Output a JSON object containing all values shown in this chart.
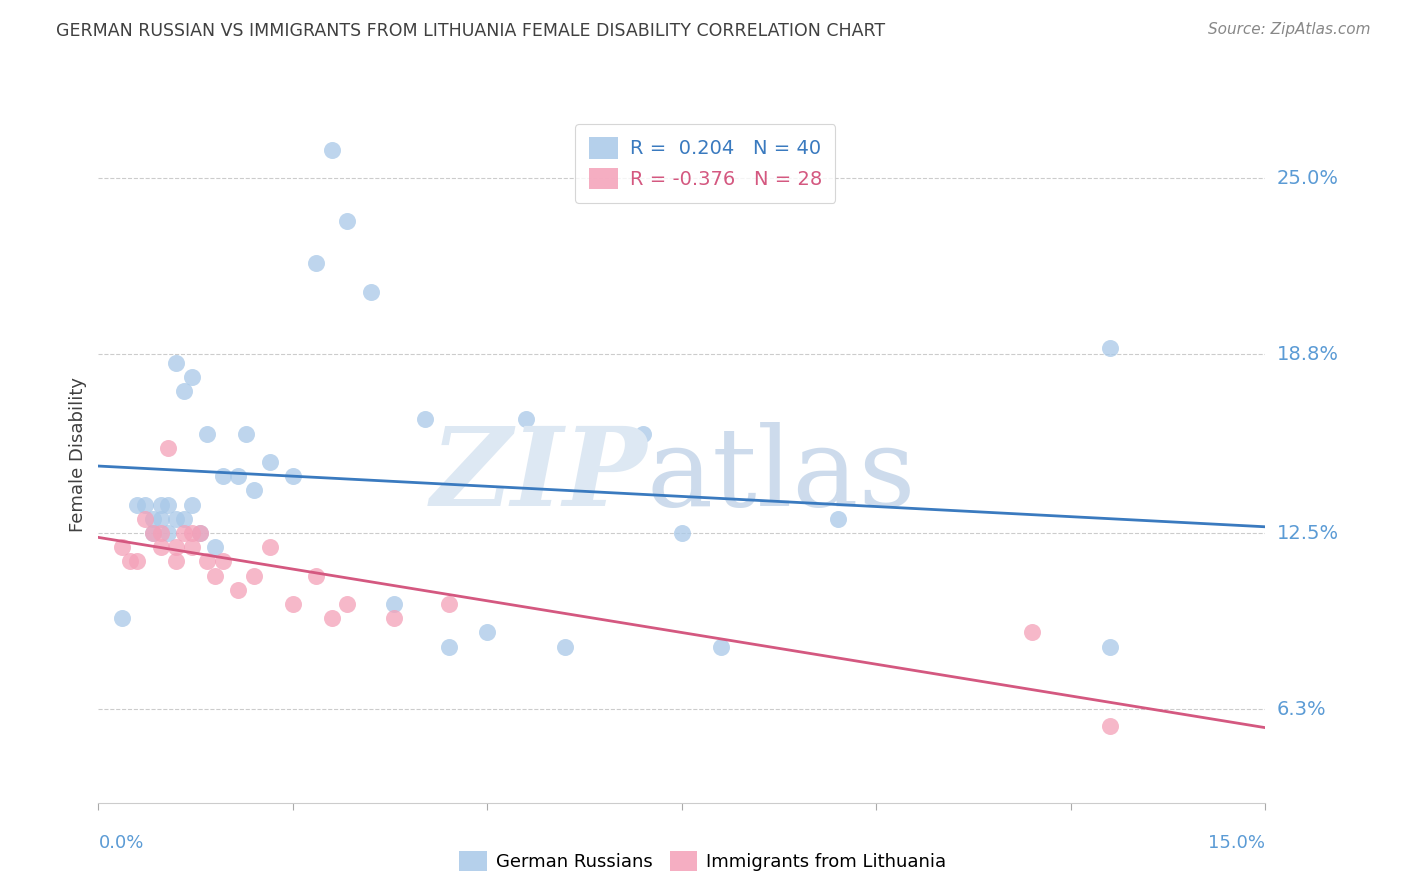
{
  "title": "GERMAN RUSSIAN VS IMMIGRANTS FROM LITHUANIA FEMALE DISABILITY CORRELATION CHART",
  "source": "Source: ZipAtlas.com",
  "ylabel": "Female Disability",
  "ytick_labels": [
    "6.3%",
    "12.5%",
    "18.8%",
    "25.0%"
  ],
  "ytick_values": [
    0.063,
    0.125,
    0.188,
    0.25
  ],
  "xlim": [
    0.0,
    0.15
  ],
  "ylim": [
    0.03,
    0.275
  ],
  "legend1_R": "0.204",
  "legend1_N": "40",
  "legend2_R": "-0.376",
  "legend2_N": "28",
  "blue_color": "#a8c8e8",
  "pink_color": "#f4a0b8",
  "blue_line_color": "#3a7abf",
  "pink_line_color": "#d45880",
  "axis_label_color": "#5b9bd5",
  "title_color": "#404040",
  "grid_color": "#cccccc",
  "german_russian_x": [
    0.003,
    0.005,
    0.006,
    0.007,
    0.007,
    0.008,
    0.008,
    0.009,
    0.009,
    0.01,
    0.01,
    0.011,
    0.011,
    0.012,
    0.012,
    0.013,
    0.014,
    0.015,
    0.016,
    0.018,
    0.019,
    0.02,
    0.022,
    0.025,
    0.028,
    0.03,
    0.032,
    0.035,
    0.038,
    0.042,
    0.045,
    0.05,
    0.055,
    0.06,
    0.07,
    0.075,
    0.08,
    0.095,
    0.13,
    0.13
  ],
  "german_russian_y": [
    0.095,
    0.135,
    0.135,
    0.125,
    0.13,
    0.13,
    0.135,
    0.125,
    0.135,
    0.13,
    0.185,
    0.13,
    0.175,
    0.135,
    0.18,
    0.125,
    0.16,
    0.12,
    0.145,
    0.145,
    0.16,
    0.14,
    0.15,
    0.145,
    0.22,
    0.26,
    0.235,
    0.21,
    0.1,
    0.165,
    0.085,
    0.09,
    0.165,
    0.085,
    0.16,
    0.125,
    0.085,
    0.13,
    0.085,
    0.19
  ],
  "lithuania_x": [
    0.003,
    0.004,
    0.005,
    0.006,
    0.007,
    0.008,
    0.008,
    0.009,
    0.01,
    0.01,
    0.011,
    0.012,
    0.012,
    0.013,
    0.014,
    0.015,
    0.016,
    0.018,
    0.02,
    0.022,
    0.025,
    0.028,
    0.03,
    0.032,
    0.038,
    0.045,
    0.12,
    0.13
  ],
  "lithuania_y": [
    0.12,
    0.115,
    0.115,
    0.13,
    0.125,
    0.125,
    0.12,
    0.155,
    0.12,
    0.115,
    0.125,
    0.12,
    0.125,
    0.125,
    0.115,
    0.11,
    0.115,
    0.105,
    0.11,
    0.12,
    0.1,
    0.11,
    0.095,
    0.1,
    0.095,
    0.1,
    0.09,
    0.057
  ]
}
